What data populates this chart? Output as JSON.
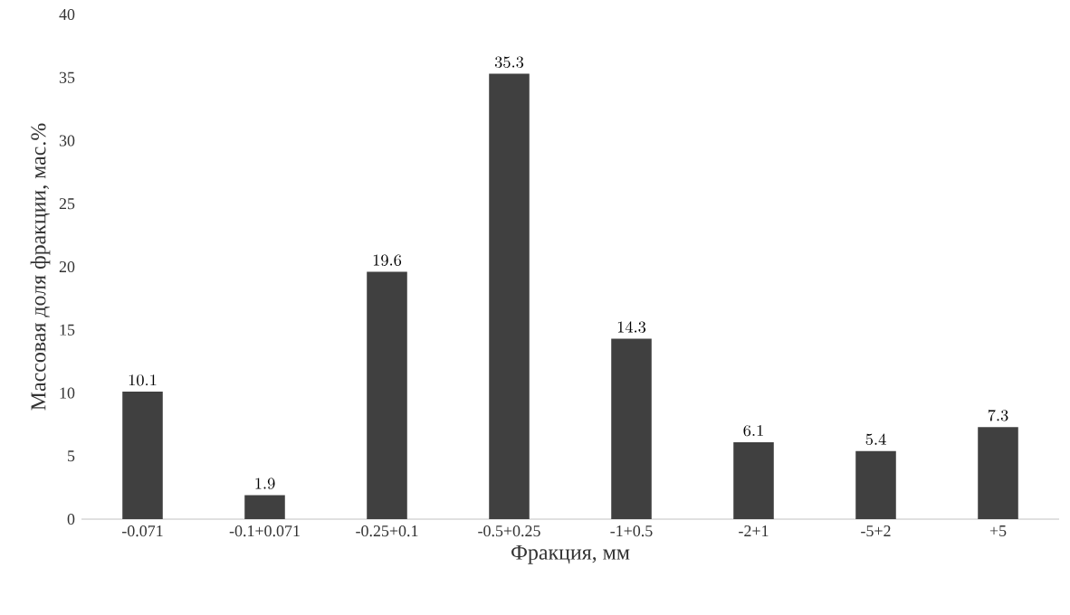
{
  "chart_data": {
    "type": "bar",
    "xlabel": "Фракция, мм",
    "ylabel": "Массовая доля фракции, мас.%",
    "categories": [
      "-0.071",
      "-0.1+0.071",
      "-0.25+0.1",
      "-0.5+0.25",
      "-1+0.5",
      "-2+1",
      "-5+2",
      "+5"
    ],
    "values": [
      10.1,
      1.9,
      19.6,
      35.3,
      14.3,
      6.1,
      5.4,
      7.3
    ],
    "color": "#404040",
    "ylim": [
      0,
      40
    ],
    "yticks": [
      0,
      5,
      10,
      15,
      20,
      25,
      30,
      35,
      40
    ],
    "data_labels": true
  }
}
